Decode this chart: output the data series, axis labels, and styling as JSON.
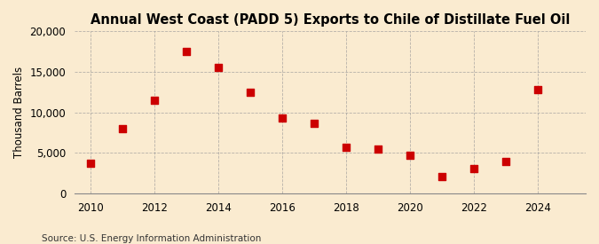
{
  "title": "Annual West Coast (PADD 5) Exports to Chile of Distillate Fuel Oil",
  "ylabel": "Thousand Barrels",
  "source": "Source: U.S. Energy Information Administration",
  "years": [
    2010,
    2011,
    2012,
    2013,
    2014,
    2015,
    2016,
    2017,
    2018,
    2019,
    2020,
    2021,
    2022,
    2023,
    2024
  ],
  "values": [
    3700,
    8000,
    11500,
    17500,
    15500,
    12500,
    9300,
    8700,
    5700,
    5500,
    4700,
    2100,
    3100,
    3900,
    12800
  ],
  "marker_color": "#cc0000",
  "marker_size": 28,
  "background_color": "#faebd0",
  "grid_color": "#999999",
  "title_fontsize": 10.5,
  "label_fontsize": 8.5,
  "source_fontsize": 7.5,
  "ylim": [
    0,
    20000
  ],
  "xlim": [
    2009.5,
    2025.5
  ],
  "yticks": [
    0,
    5000,
    10000,
    15000,
    20000
  ],
  "xticks": [
    2010,
    2012,
    2014,
    2016,
    2018,
    2020,
    2022,
    2024
  ]
}
